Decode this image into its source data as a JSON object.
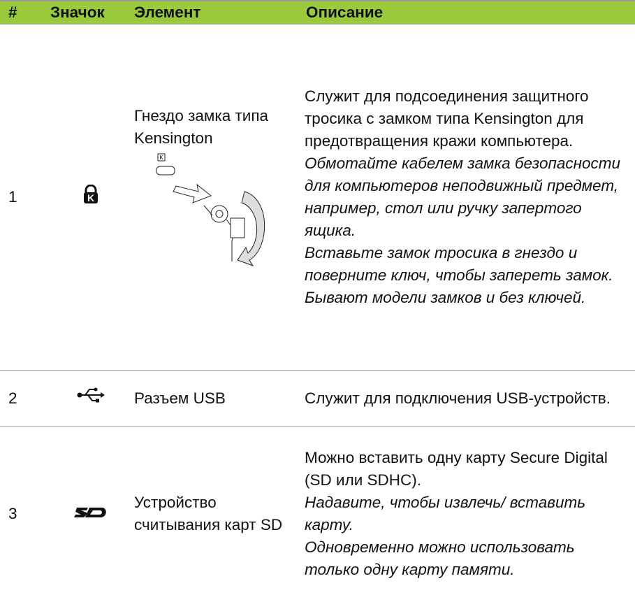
{
  "table": {
    "header": [
      "#",
      "Значок",
      "Элемент",
      "Описание"
    ],
    "rows": [
      {
        "number": "1",
        "element": "Гнездо замка типа Kensington",
        "description": "Служит для подсоединения защитного тросика с замком типа Kensington для предотвращения кражи компьютера.",
        "notes": [
          "Обмотайте кабелем замка безопасности для компьютеров неподвижный предмет, например, стол или ручку запертого ящика.",
          "Вставьте замок тросика в гнездо и поверните ключ, чтобы запереть замок.",
          "Бывают модели замков и без ключей."
        ]
      },
      {
        "number": "2",
        "element": "Разъем USB",
        "description": "Служит для подключения USB-устройств.",
        "notes": []
      },
      {
        "number": "3",
        "element": "Устройство считывания карт SD",
        "description": "Можно вставить одну карту Secure Digital (SD или SDHC).",
        "notes": [
          "Надавите, чтобы извлечь/ вставить карту.",
          "Одновременно можно использовать только одну карту памяти."
        ]
      }
    ]
  }
}
